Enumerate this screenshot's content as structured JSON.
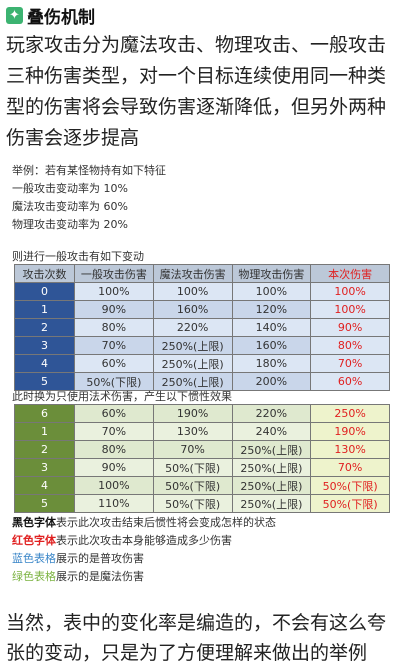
{
  "header": {
    "icon": "sparkle-check-icon",
    "title": "叠伤机制"
  },
  "intro": [
    "玩家攻击分为魔法攻击、物理攻击、一般攻击",
    "三种伤害类型，对一个目标连续使用同一种类",
    "型的伤害将会导致伤害逐渐降低，但另外两种",
    "伤害会逐步提高"
  ],
  "example": {
    "lines": [
      "举例：若有某怪物持有如下特征",
      "一般攻击变动率为 10%",
      "魔法攻击变动率为 60%",
      "物理攻击变动率为 20%"
    ],
    "table1_caption": "则进行一般攻击有如下变动",
    "headers": [
      "攻击次数",
      "一般攻击伤害",
      "魔法攻击伤害",
      "物理攻击伤害",
      "本次伤害"
    ],
    "table1_rows": [
      [
        "0",
        "100%",
        "100%",
        "100%",
        "100%"
      ],
      [
        "1",
        "90%",
        "160%",
        "120%",
        "100%"
      ],
      [
        "2",
        "80%",
        "220%",
        "140%",
        "90%"
      ],
      [
        "3",
        "70%",
        "250%(上限)",
        "160%",
        "80%"
      ],
      [
        "4",
        "60%",
        "250%(上限)",
        "180%",
        "70%"
      ],
      [
        "5",
        "50%(下限)",
        "250%(上限)",
        "200%",
        "60%"
      ]
    ],
    "table2_caption": "此时换为只使用法术伤害，产生以下惯性效果",
    "table2_rows": [
      [
        "6",
        "60%",
        "190%",
        "220%",
        "250%"
      ],
      [
        "1",
        "70%",
        "130%",
        "240%",
        "190%"
      ],
      [
        "2",
        "80%",
        "70%",
        "250%(上限)",
        "130%"
      ],
      [
        "3",
        "90%",
        "50%(下限)",
        "250%(上限)",
        "70%"
      ],
      [
        "4",
        "100%",
        "50%(下限)",
        "250%(上限)",
        "50%(下限)"
      ],
      [
        "5",
        "110%",
        "50%(下限)",
        "250%(上限)",
        "50%(下限)"
      ]
    ],
    "legend": [
      {
        "key": "黑色字体",
        "text": "表示此次攻击结束后惯性将会变成怎样的状态",
        "color": "#111111"
      },
      {
        "key": "红色字体",
        "text": "表示此次攻击本身能够造成多少伤害",
        "color": "#e02020"
      },
      {
        "key": "蓝色表格",
        "text": "展示的是普攻伤害",
        "color": "#3a86c8"
      },
      {
        "key": "绿色表格",
        "text": "展示的是魔法伤害",
        "color": "#7cb342"
      }
    ]
  },
  "outro": [
    "当然，表中的变化率是编造的，不会有这么夸",
    "张的变动，只是为了方便理解来做出的举例"
  ]
}
